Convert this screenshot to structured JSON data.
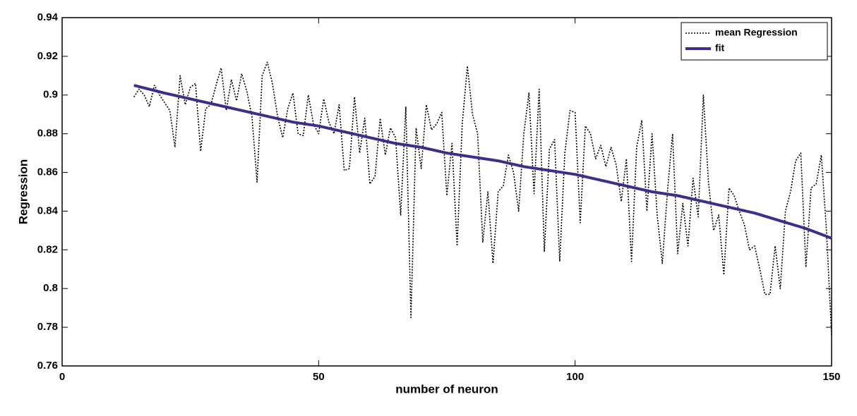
{
  "chart_data": {
    "type": "line",
    "xlabel": "number of neuron",
    "ylabel": "Regression",
    "xlim": [
      0,
      150
    ],
    "xticks": [
      0,
      50,
      100,
      150
    ],
    "ylim": [
      0.76,
      0.94
    ],
    "yticks": [
      0.76,
      0.78,
      {
        "value": 0.8,
        "label": "0.8"
      },
      0.82,
      0.84,
      0.86,
      0.88,
      {
        "value": 0.9,
        "label": "0.9"
      },
      0.92,
      0.94
    ],
    "legend": "upper right",
    "series": [
      {
        "name": "mean Regression",
        "color": "#000000",
        "line_style": "dotted",
        "x": [
          14,
          15,
          16,
          17,
          18,
          19,
          20,
          21,
          22,
          23,
          24,
          25,
          26,
          27,
          28,
          29,
          30,
          31,
          32,
          33,
          34,
          35,
          36,
          37,
          38,
          39,
          40,
          41,
          42,
          43,
          44,
          45,
          46,
          47,
          48,
          49,
          50,
          51,
          52,
          53,
          54,
          55,
          56,
          57,
          58,
          59,
          60,
          61,
          62,
          63,
          64,
          65,
          66,
          67,
          68,
          69,
          70,
          71,
          72,
          73,
          74,
          75,
          76,
          77,
          78,
          79,
          80,
          81,
          82,
          83,
          84,
          85,
          86,
          87,
          88,
          89,
          90,
          91,
          92,
          93,
          94,
          95,
          96,
          97,
          98,
          99,
          100,
          101,
          102,
          103,
          104,
          105,
          106,
          107,
          108,
          109,
          110,
          111,
          112,
          113,
          114,
          115,
          116,
          117,
          118,
          119,
          120,
          121,
          122,
          123,
          124,
          125,
          126,
          127,
          128,
          129,
          130,
          131,
          132,
          133,
          134,
          135,
          136,
          137,
          138,
          139,
          140,
          141,
          142,
          143,
          144,
          145,
          146,
          147,
          148,
          149,
          150
        ],
        "values": [
          0.899,
          0.903,
          0.9,
          0.894,
          0.905,
          0.9,
          0.896,
          0.892,
          0.873,
          0.91,
          0.895,
          0.904,
          0.906,
          0.871,
          0.893,
          0.895,
          0.905,
          0.914,
          0.892,
          0.908,
          0.897,
          0.911,
          0.902,
          0.889,
          0.855,
          0.91,
          0.917,
          0.906,
          0.889,
          0.878,
          0.893,
          0.901,
          0.88,
          0.879,
          0.9,
          0.885,
          0.88,
          0.898,
          0.886,
          0.88,
          0.895,
          0.861,
          0.862,
          0.899,
          0.87,
          0.888,
          0.854,
          0.858,
          0.888,
          0.869,
          0.883,
          0.878,
          0.838,
          0.894,
          0.785,
          0.883,
          0.862,
          0.895,
          0.882,
          0.885,
          0.891,
          0.848,
          0.875,
          0.822,
          0.885,
          0.915,
          0.89,
          0.88,
          0.824,
          0.85,
          0.813,
          0.85,
          0.853,
          0.869,
          0.86,
          0.84,
          0.88,
          0.901,
          0.849,
          0.903,
          0.819,
          0.872,
          0.877,
          0.814,
          0.87,
          0.892,
          0.891,
          0.834,
          0.884,
          0.88,
          0.867,
          0.874,
          0.863,
          0.873,
          0.864,
          0.845,
          0.867,
          0.814,
          0.873,
          0.887,
          0.84,
          0.88,
          0.838,
          0.813,
          0.85,
          0.88,
          0.818,
          0.844,
          0.822,
          0.857,
          0.837,
          0.9,
          0.855,
          0.83,
          0.838,
          0.807,
          0.852,
          0.848,
          0.84,
          0.833,
          0.82,
          0.822,
          0.81,
          0.797,
          0.797,
          0.822,
          0.8,
          0.84,
          0.85,
          0.866,
          0.87,
          0.811,
          0.852,
          0.854,
          0.869,
          0.83,
          0.776
        ]
      },
      {
        "name": "fit",
        "color": "#3b2e8c",
        "line_style": "solid",
        "x": [
          14,
          20,
          25,
          30,
          35,
          40,
          45,
          50,
          55,
          60,
          65,
          70,
          75,
          80,
          85,
          90,
          95,
          100,
          105,
          110,
          115,
          120,
          125,
          130,
          135,
          140,
          145,
          150
        ],
        "values": [
          0.905,
          0.901,
          0.898,
          0.895,
          0.892,
          0.889,
          0.886,
          0.884,
          0.881,
          0.878,
          0.875,
          0.873,
          0.87,
          0.868,
          0.866,
          0.863,
          0.861,
          0.859,
          0.856,
          0.853,
          0.85,
          0.848,
          0.845,
          0.842,
          0.839,
          0.835,
          0.831,
          0.826
        ]
      }
    ]
  }
}
